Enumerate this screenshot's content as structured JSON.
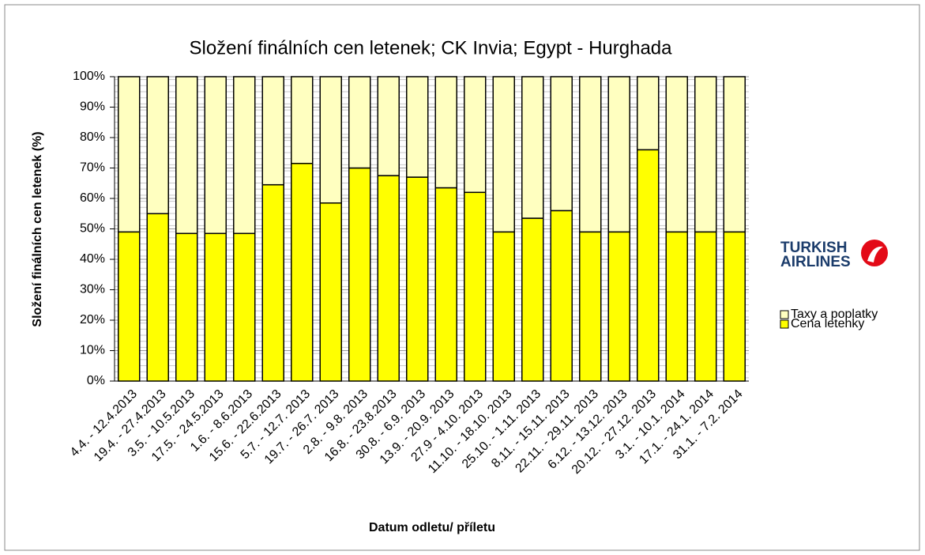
{
  "chart_data": {
    "type": "stacked_bar",
    "title": "Složení finálních cen letenek; CK Invia; Egypt - Hurghada",
    "x_label": "Datum odletu/ příletu",
    "y_label": "Složení finálních cen letenek (%)",
    "logo": [
      "TURKISH",
      "AIRLINES"
    ],
    "categories": [
      "4.4. - 12.4.2013",
      "19.4. - 27.4.2013",
      "3.5. - 10.5.2013",
      "17.5. - 24.5.2013",
      "1.6. - 8.6.2013",
      "15.6. - 22.6.2013",
      "5.7. - 12.7. 2013",
      "19.7. - 26.7. 2013",
      "2.8. - 9.8. 2013",
      "16.8. - 23.8.2013",
      "30.8. - 6.9. 2013",
      "13.9. - 20.9. 2013",
      "27.9 - 4.10. 2013",
      "11.10. - 18.10. 2013",
      "25.10. - 1.11. 2013",
      "8.11. - 15.11. 2013",
      "22.11. - 29.11. 2013",
      "6.12. - 13.12. 2013",
      "20.12. - 27.12. 2013",
      "3.1. - 10.1. 2014",
      "17.1. - 24.1. 2014",
      "31.1. - 7.2. 2014"
    ],
    "series": [
      {
        "name": "Cena letenky",
        "color": "#ffff00",
        "values": [
          49,
          55,
          48.5,
          48.5,
          48.5,
          64.5,
          71.5,
          58.5,
          70,
          67.5,
          67,
          63.5,
          62,
          49,
          53.5,
          56,
          49,
          49,
          76,
          49,
          49,
          49
        ]
      },
      {
        "name": "Taxy a poplatky",
        "color": "#ffffc0",
        "values": [
          51,
          45,
          51.5,
          51.5,
          51.5,
          35.5,
          28.5,
          41.5,
          30,
          32.5,
          33,
          36.5,
          38,
          51,
          46.5,
          44,
          51,
          51,
          24,
          51,
          51,
          51
        ]
      }
    ],
    "ylim": [
      0,
      100
    ],
    "yticks": [
      {
        "value": 0,
        "label": "0%"
      },
      {
        "value": 10,
        "label": "10%"
      },
      {
        "value": 20,
        "label": "20%"
      },
      {
        "value": 30,
        "label": "30%"
      },
      {
        "value": 40,
        "label": "40%"
      },
      {
        "value": 50,
        "label": "50%"
      },
      {
        "value": 60,
        "label": "60%"
      },
      {
        "value": 70,
        "label": "70%"
      },
      {
        "value": 80,
        "label": "80%"
      },
      {
        "value": 90,
        "label": "90%"
      },
      {
        "value": 100,
        "label": "100%"
      }
    ],
    "grid": true
  }
}
